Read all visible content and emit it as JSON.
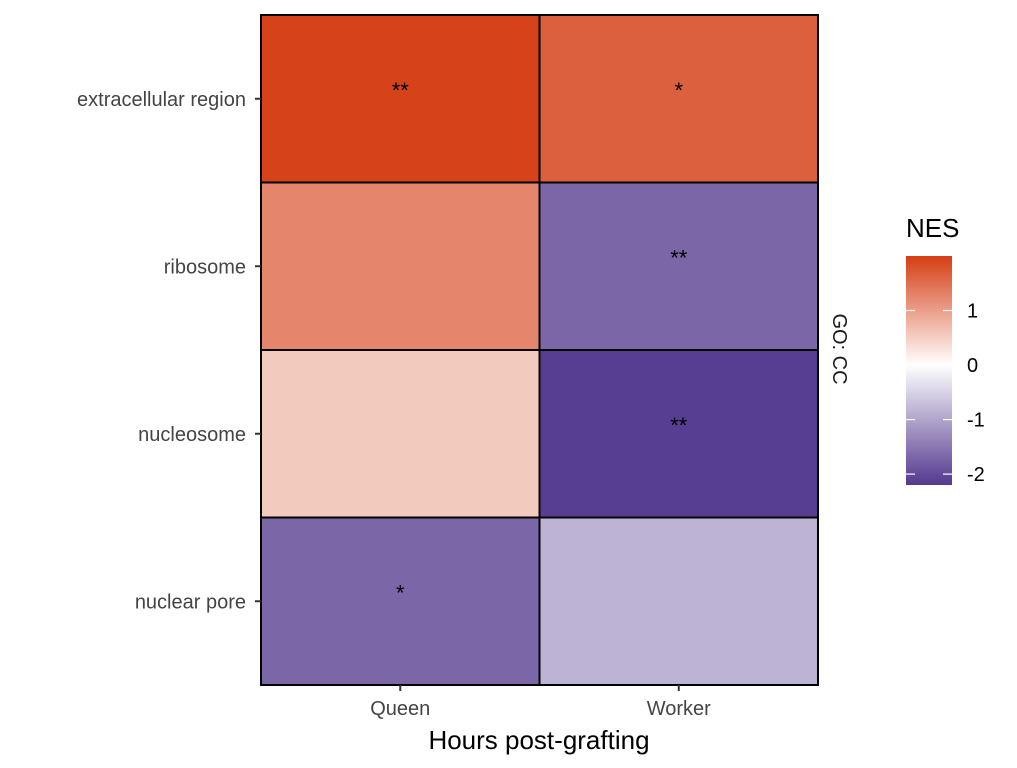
{
  "chart_data": {
    "type": "heatmap",
    "xlabel": "Hours post-grafting",
    "x_categories": [
      "Queen",
      "Worker"
    ],
    "y_categories": [
      "extracellular region",
      "ribosome",
      "nucleosome",
      "nuclear pore"
    ],
    "facet_label": "GO: CC",
    "legend": {
      "title": "NES",
      "position": "right",
      "ticks": [
        "1",
        "0",
        "-1",
        "-2"
      ],
      "range": [
        -2.2,
        2.0
      ]
    },
    "colors": {
      "low": "#54398f",
      "mid": "#ffffff",
      "high": "#d53e14",
      "grid": "#000000"
    },
    "cells": [
      {
        "x": "Queen",
        "y": "extracellular region",
        "value": 1.95,
        "label": "**"
      },
      {
        "x": "Worker",
        "y": "extracellular region",
        "value": 1.65,
        "label": "*"
      },
      {
        "x": "Queen",
        "y": "ribosome",
        "value": 1.25,
        "label": ""
      },
      {
        "x": "Worker",
        "y": "ribosome",
        "value": -1.7,
        "label": "**"
      },
      {
        "x": "Queen",
        "y": "nucleosome",
        "value": 0.55,
        "label": ""
      },
      {
        "x": "Worker",
        "y": "nucleosome",
        "value": -2.15,
        "label": "**"
      },
      {
        "x": "Queen",
        "y": "nuclear pore",
        "value": -1.7,
        "label": "*"
      },
      {
        "x": "Worker",
        "y": "nuclear pore",
        "value": -0.85,
        "label": ""
      }
    ]
  }
}
